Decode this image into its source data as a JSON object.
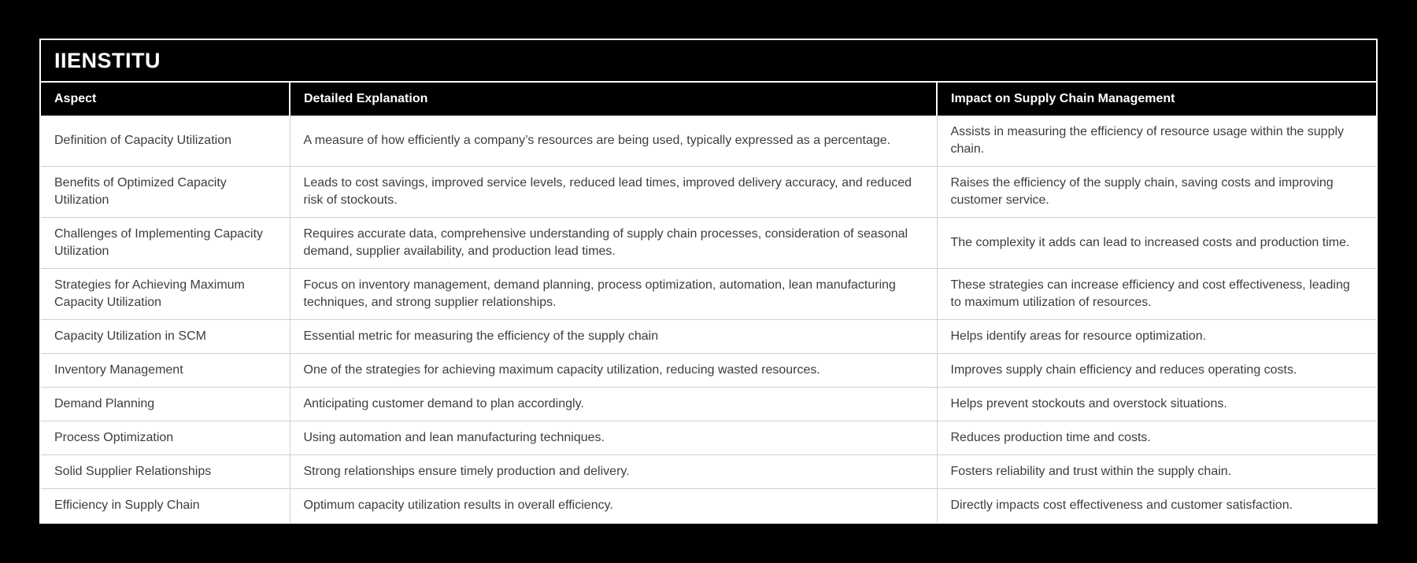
{
  "brand": {
    "title": "IIENSTITU"
  },
  "table": {
    "columns": [
      "Aspect",
      "Detailed Explanation",
      "Impact on Supply Chain Management"
    ],
    "rows": [
      {
        "aspect": "Definition of Capacity Utilization",
        "explanation": "A measure of how efficiently a company’s resources are being used, typically expressed as a percentage.",
        "impact": "Assists in measuring the efficiency of resource usage within the supply chain."
      },
      {
        "aspect": "Benefits of Optimized Capacity Utilization",
        "explanation": "Leads to cost savings, improved service levels, reduced lead times, improved delivery accuracy, and reduced risk of stockouts.",
        "impact": "Raises the efficiency of the supply chain, saving costs and improving customer service."
      },
      {
        "aspect": "Challenges of Implementing Capacity Utilization",
        "explanation": "Requires accurate data, comprehensive understanding of supply chain processes, consideration of seasonal demand, supplier availability, and production lead times.",
        "impact": "The complexity it adds can lead to increased costs and production time."
      },
      {
        "aspect": "Strategies for Achieving Maximum Capacity Utilization",
        "explanation": "Focus on inventory management, demand planning, process optimization, automation, lean manufacturing techniques, and strong supplier relationships.",
        "impact": "These strategies can increase efficiency and cost effectiveness, leading to maximum utilization of resources."
      },
      {
        "aspect": "Capacity Utilization in SCM",
        "explanation": "Essential metric for measuring the efficiency of the supply chain",
        "impact": "Helps identify areas for resource optimization."
      },
      {
        "aspect": "Inventory Management",
        "explanation": "One of the strategies for achieving maximum capacity utilization, reducing wasted resources.",
        "impact": "Improves supply chain efficiency and reduces operating costs."
      },
      {
        "aspect": "Demand Planning",
        "explanation": "Anticipating customer demand to plan accordingly.",
        "impact": "Helps prevent stockouts and overstock situations."
      },
      {
        "aspect": "Process Optimization",
        "explanation": "Using automation and lean manufacturing techniques.",
        "impact": "Reduces production time and costs."
      },
      {
        "aspect": "Solid Supplier Relationships",
        "explanation": "Strong relationships ensure timely production and delivery.",
        "impact": "Fosters reliability and trust within the supply chain."
      },
      {
        "aspect": "Efficiency in Supply Chain",
        "explanation": "Optimum capacity utilization results in overall efficiency.",
        "impact": "Directly impacts cost effectiveness and customer satisfaction."
      }
    ]
  },
  "colors": {
    "page_background": "#000000",
    "header_background": "#000000",
    "header_text": "#ffffff",
    "body_text": "#3d3d3d",
    "row_background": "#ffffff",
    "divider": "#d0d0d0",
    "outer_border": "#ffffff"
  }
}
